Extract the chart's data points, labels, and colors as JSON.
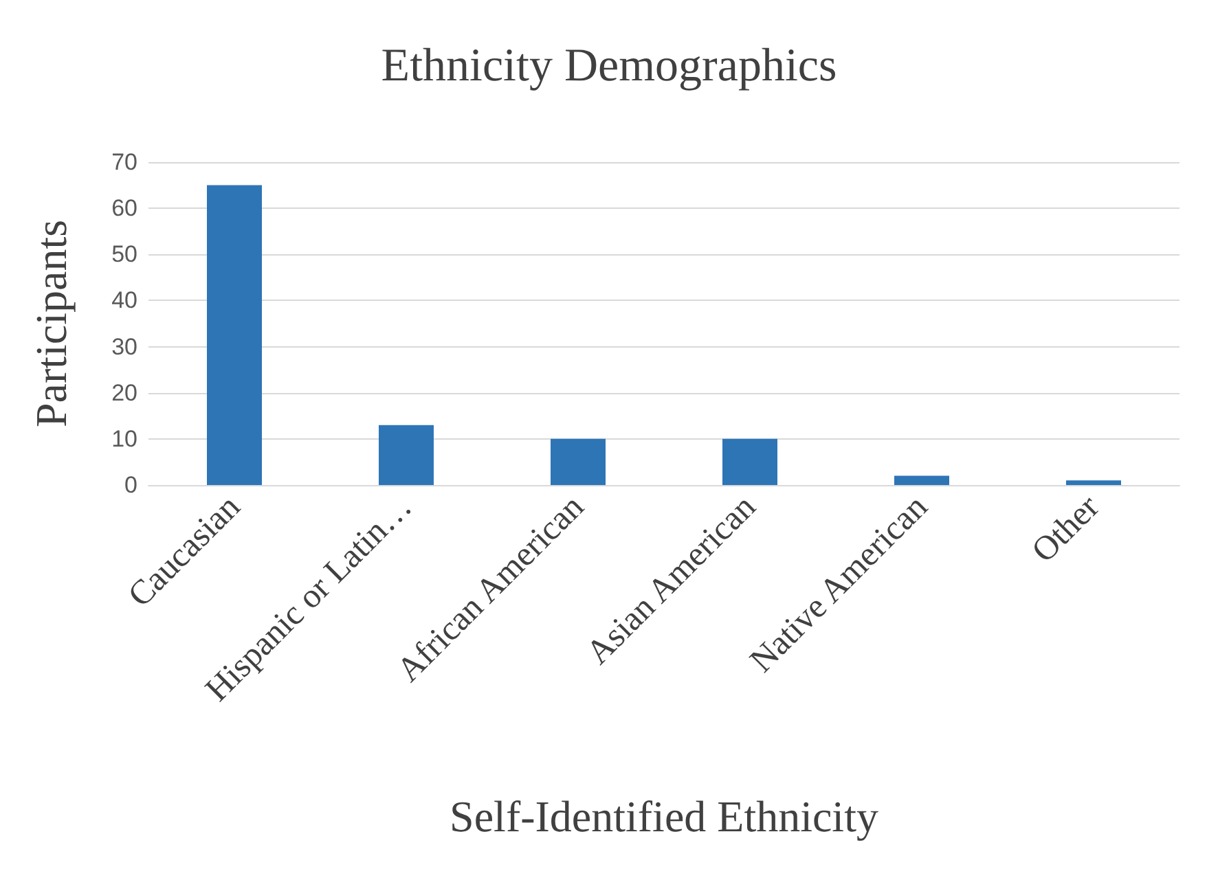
{
  "chart_data": {
    "type": "bar",
    "title": "Ethnicity Demographics",
    "xlabel": "Self-Identified Ethnicity",
    "ylabel": "Participants",
    "categories": [
      "Caucasian",
      "Hispanic or Latin…",
      "African American",
      "Asian American",
      "Native American",
      "Other"
    ],
    "values": [
      65,
      13,
      10,
      10,
      2,
      1
    ],
    "color": "#2e75b6",
    "ylim": [
      0,
      70
    ],
    "yticks": [
      0,
      10,
      20,
      30,
      40,
      50,
      60,
      70
    ],
    "grid": "y"
  }
}
